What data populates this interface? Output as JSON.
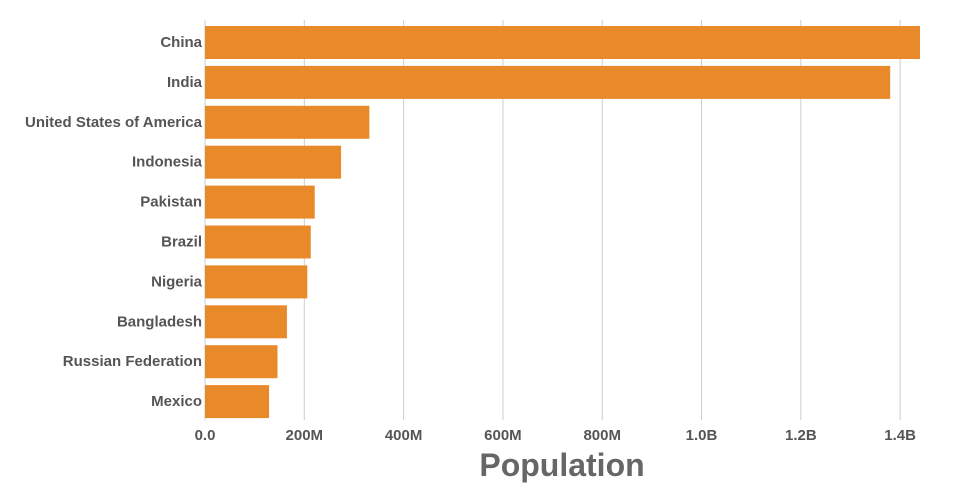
{
  "chart_data": {
    "type": "bar",
    "orientation": "horizontal",
    "categories": [
      "China",
      "India",
      "United States of America",
      "Indonesia",
      "Pakistan",
      "Brazil",
      "Nigeria",
      "Bangladesh",
      "Russian Federation",
      "Mexico"
    ],
    "values": [
      1440000000,
      1380000000,
      331000000,
      274000000,
      221000000,
      213000000,
      206000000,
      165000000,
      146000000,
      129000000
    ],
    "xlabel": "Population",
    "ylabel": "",
    "xlim": [
      0,
      1440000000
    ],
    "ticks": [
      {
        "value": 0,
        "label": "0.0"
      },
      {
        "value": 200000000,
        "label": "200M"
      },
      {
        "value": 400000000,
        "label": "400M"
      },
      {
        "value": 600000000,
        "label": "600M"
      },
      {
        "value": 800000000,
        "label": "800M"
      },
      {
        "value": 1000000000,
        "label": "1.0B"
      },
      {
        "value": 1200000000,
        "label": "1.2B"
      },
      {
        "value": 1400000000,
        "label": "1.4B"
      }
    ],
    "grid": true,
    "colors": {
      "bar": "#E8892A",
      "grid": "#cccccc",
      "label": "#555555",
      "axis_title": "#666666"
    }
  }
}
